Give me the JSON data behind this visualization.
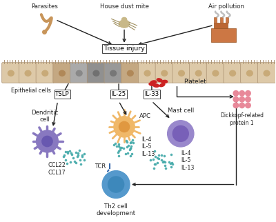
{
  "bg_color": "#ffffff",
  "epithelial_color": "#ddc9a8",
  "damaged_colors": [
    "#c4a882",
    "#c4a882",
    "#aaaaaa",
    "#909090",
    "#888888",
    "#aaaaaa",
    "#c4a882"
  ],
  "platelet_color": "#cc2222",
  "dendritic_color": "#8878c0",
  "apc_color": "#f0b868",
  "mast_cell_color": "#9988cc",
  "th2_color": "#5599cc",
  "dkk_color": "#e88899",
  "dot_color": "#44aaaa",
  "arrow_color": "#222222",
  "box_color": "#ffffff",
  "box_edge": "#444444",
  "labels": {
    "parasites": "Parasites",
    "dust_mite": "House dust mite",
    "air_pollution": "Air pollution",
    "tissue_injury": "Tissue injury",
    "epithelial": "Epithelial cells",
    "platelet": "Platelet",
    "tslp": "TSLP",
    "il25": "IL-25",
    "il33": "IL-33",
    "apc": "APC",
    "dendritic": "Dendritic\ncell",
    "mast_cell": "Mast cell",
    "th2": "Th2 cell\ndevelopment",
    "tcr": "TCR",
    "ccl": "CCL22\nCCL17",
    "il4_5_13_apc": "IL-4\nIL-5\nIL-13",
    "il4_5_13_mast": "IL-4\nIL-5\nIL-13",
    "dkk": "Dickkopf-related\nprotein 1"
  }
}
